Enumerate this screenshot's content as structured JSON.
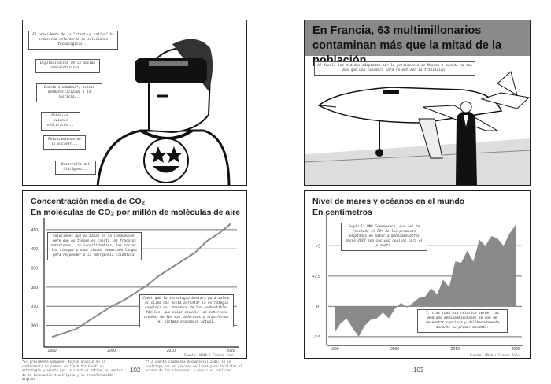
{
  "left_page": {
    "page_number": "102",
    "panel1": {
      "captions": [
        "El presidente de la \"start-up nation\" ha prometido reforzarse en soluciones tecnológicas...",
        "Digitalización de la acción administrativa...",
        "Cuenta ciudadana*, acceso desmaterializado a la justicia...",
        "Robótica, aviones eléctricos...",
        "Relanzamiento de lo nuclear...",
        "Desarrollo del hidrógeno..."
      ],
      "illustration": "man-with-vr-headset-star-eyes-shirt"
    },
    "footnotes": [
      "*El presidente Emmanuel Macron anunció en la conferencia de prensa de \"Tech for Good\" su estrategia y apostó por la start-up nation, su sector de la innovación tecnológica y su transformación digital.",
      "**La cuenta ciudadana desmaterializada: se le sustituye por un proceso en línea para facilitar el acceso de los ciudadanos a servicios públicos."
    ]
  },
  "right_page": {
    "page_number": "103",
    "panel1": {
      "headline": "En Francia, 63 multimillonarios contaminan más que la mitad de la población.",
      "caption": "Al final, las medidas adoptadas por la presidencia de Macron a menudo no son más que una tapadera para ralentizar la transición.",
      "illustration": "man-in-suit-in-front-of-private-jet"
    }
  },
  "chart_data": [
    {
      "type": "line",
      "title": "Concentración media de CO₂",
      "subtitle": "En moléculas de CO₂ por millón de moléculas de aire",
      "x": [
        1990,
        1992,
        1994,
        1996,
        1998,
        2000,
        2002,
        2004,
        2006,
        2008,
        2010,
        2012,
        2014,
        2016,
        2018,
        2020
      ],
      "values": [
        354,
        356,
        358,
        362,
        366,
        370,
        373,
        377,
        381,
        386,
        390,
        394,
        398,
        404,
        408,
        413
      ],
      "ylim": [
        352,
        412
      ],
      "yticks": [
        "360",
        "370",
        "380",
        "390",
        "400",
        "410"
      ],
      "xticks": [
        "1990",
        "2000",
        "2010",
        "2020"
      ],
      "grid": true,
      "source": "Fuente: NOAA / France Info",
      "color": "#888888",
      "annotations": [
        "Soluciones que se basan en la innovación, pero que no tienen en cuenta los fracasos anteriores, las incertidumbres, los costes, los riesgos y unos plazos demasiado largos para responder a la emergencia climática.",
        "Creer que la tecnología bastará para salvar el clima nos evita afrontar la estrategia compleja del abandono de los combustibles fósiles, que exige sacudir los intereses creados de los más poderosos y transformar el sistema económico actual."
      ]
    },
    {
      "type": "area",
      "title": "Nivel de mares y océanos en el mundo",
      "subtitle": "En centímetros",
      "x": [
        1990,
        1991,
        1992,
        1993,
        1994,
        1995,
        1996,
        1997,
        1998,
        1999,
        2000,
        2001,
        2002,
        2003,
        2004,
        2005,
        2006,
        2007,
        2008,
        2009,
        2010,
        2011,
        2012,
        2013,
        2014,
        2015,
        2016,
        2017,
        2018,
        2019,
        2020
      ],
      "values": [
        -2.2,
        -1.4,
        -1.0,
        -1.8,
        -2.5,
        -1.6,
        -1.1,
        -1.0,
        -0.5,
        -1.0,
        -0.2,
        0.3,
        -0.1,
        0.3,
        0.7,
        0.8,
        1.5,
        1.0,
        2.2,
        1.6,
        3.7,
        3.6,
        4.6,
        3.7,
        5.5,
        5.0,
        5.8,
        5.6,
        5.0,
        6.0,
        6.7
      ],
      "ylim": [
        -2.7,
        6.9
      ],
      "yticks": [
        "-2.5",
        "+0",
        "+2.5",
        "+5"
      ],
      "xticks": [
        "1990",
        "2000",
        "2010",
        "2020"
      ],
      "grid": true,
      "source": "Fuente: NOAA / France Info",
      "color": "#8a8a8a",
      "annotations": [
        "Según la ONG Greenpeace, que les ha revisado el 70% de las promesas adoptadas en materia medioambiental desde 2017 son incluso nocivas para el planeta.",
        "Y, tras toda esa retórica verde, las medidas medioambientales se han de desmontar continua y deliberadamente durante su primer mandato."
      ]
    }
  ]
}
